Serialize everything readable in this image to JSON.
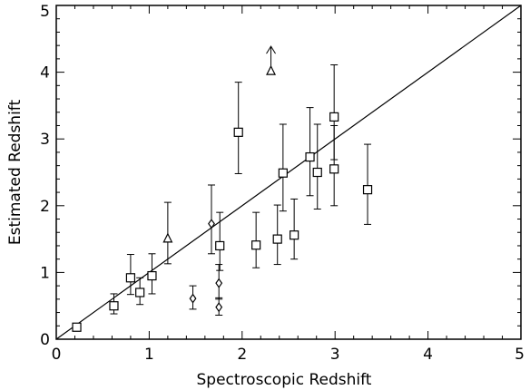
{
  "chart_data": {
    "type": "scatter",
    "title": "",
    "xlabel": "Spectroscopic Redshift",
    "ylabel": "Estimated Redshift",
    "xlim": [
      0,
      5
    ],
    "ylim": [
      0,
      5
    ],
    "xticks": [
      "0",
      "1",
      "2",
      "3",
      "4",
      "5"
    ],
    "yticks": [
      "0",
      "1",
      "2",
      "3",
      "4",
      "5"
    ],
    "grid": false,
    "legend": "none",
    "reference_line": {
      "x": [
        0,
        5
      ],
      "y": [
        0,
        5
      ]
    },
    "series": [
      {
        "marker": "square",
        "points": [
          {
            "x": 0.22,
            "y": 0.18,
            "yerr": [
              0.18,
              0.18
            ]
          },
          {
            "x": 0.62,
            "y": 0.5,
            "yerr": [
              0.38,
              0.68
            ]
          },
          {
            "x": 0.8,
            "y": 0.92,
            "yerr": [
              0.67,
              1.27
            ]
          },
          {
            "x": 0.9,
            "y": 0.7,
            "yerr": [
              0.52,
              0.92
            ]
          },
          {
            "x": 1.03,
            "y": 0.95,
            "yerr": [
              0.68,
              1.28
            ]
          },
          {
            "x": 1.76,
            "y": 1.4,
            "yerr": [
              1.03,
              1.9
            ]
          },
          {
            "x": 1.96,
            "y": 3.1,
            "yerr": [
              2.48,
              3.85
            ]
          },
          {
            "x": 2.15,
            "y": 1.41,
            "yerr": [
              1.07,
              1.9
            ]
          },
          {
            "x": 2.38,
            "y": 1.5,
            "yerr": [
              1.12,
              2.01
            ]
          },
          {
            "x": 2.44,
            "y": 2.49,
            "yerr": [
              1.92,
              3.22
            ]
          },
          {
            "x": 2.56,
            "y": 1.56,
            "yerr": [
              1.2,
              2.1
            ]
          },
          {
            "x": 2.73,
            "y": 2.73,
            "yerr": [
              2.15,
              3.47
            ]
          },
          {
            "x": 2.81,
            "y": 2.5,
            "yerr": [
              1.95,
              3.22
            ]
          },
          {
            "x": 2.99,
            "y": 3.33,
            "yerr": [
              2.69,
              4.11
            ]
          },
          {
            "x": 2.99,
            "y": 2.55,
            "yerr": [
              2.0,
              3.2
            ]
          },
          {
            "x": 3.35,
            "y": 2.24,
            "yerr": [
              1.72,
              2.92
            ]
          }
        ]
      },
      {
        "marker": "diamond",
        "points": [
          {
            "x": 1.47,
            "y": 0.61,
            "yerr": [
              0.45,
              0.8
            ]
          },
          {
            "x": 1.67,
            "y": 1.73,
            "yerr": [
              1.28,
              2.31
            ]
          },
          {
            "x": 1.75,
            "y": 0.84,
            "yerr": [
              0.6,
              1.12
            ]
          },
          {
            "x": 1.75,
            "y": 0.48,
            "yerr": [
              0.36,
              0.62
            ]
          }
        ]
      },
      {
        "marker": "triangle",
        "points": [
          {
            "x": 1.2,
            "y": 1.51,
            "yerr": [
              1.13,
              2.05
            ]
          },
          {
            "x": 2.31,
            "y": 4.02,
            "lower_limit": true
          }
        ]
      }
    ]
  }
}
